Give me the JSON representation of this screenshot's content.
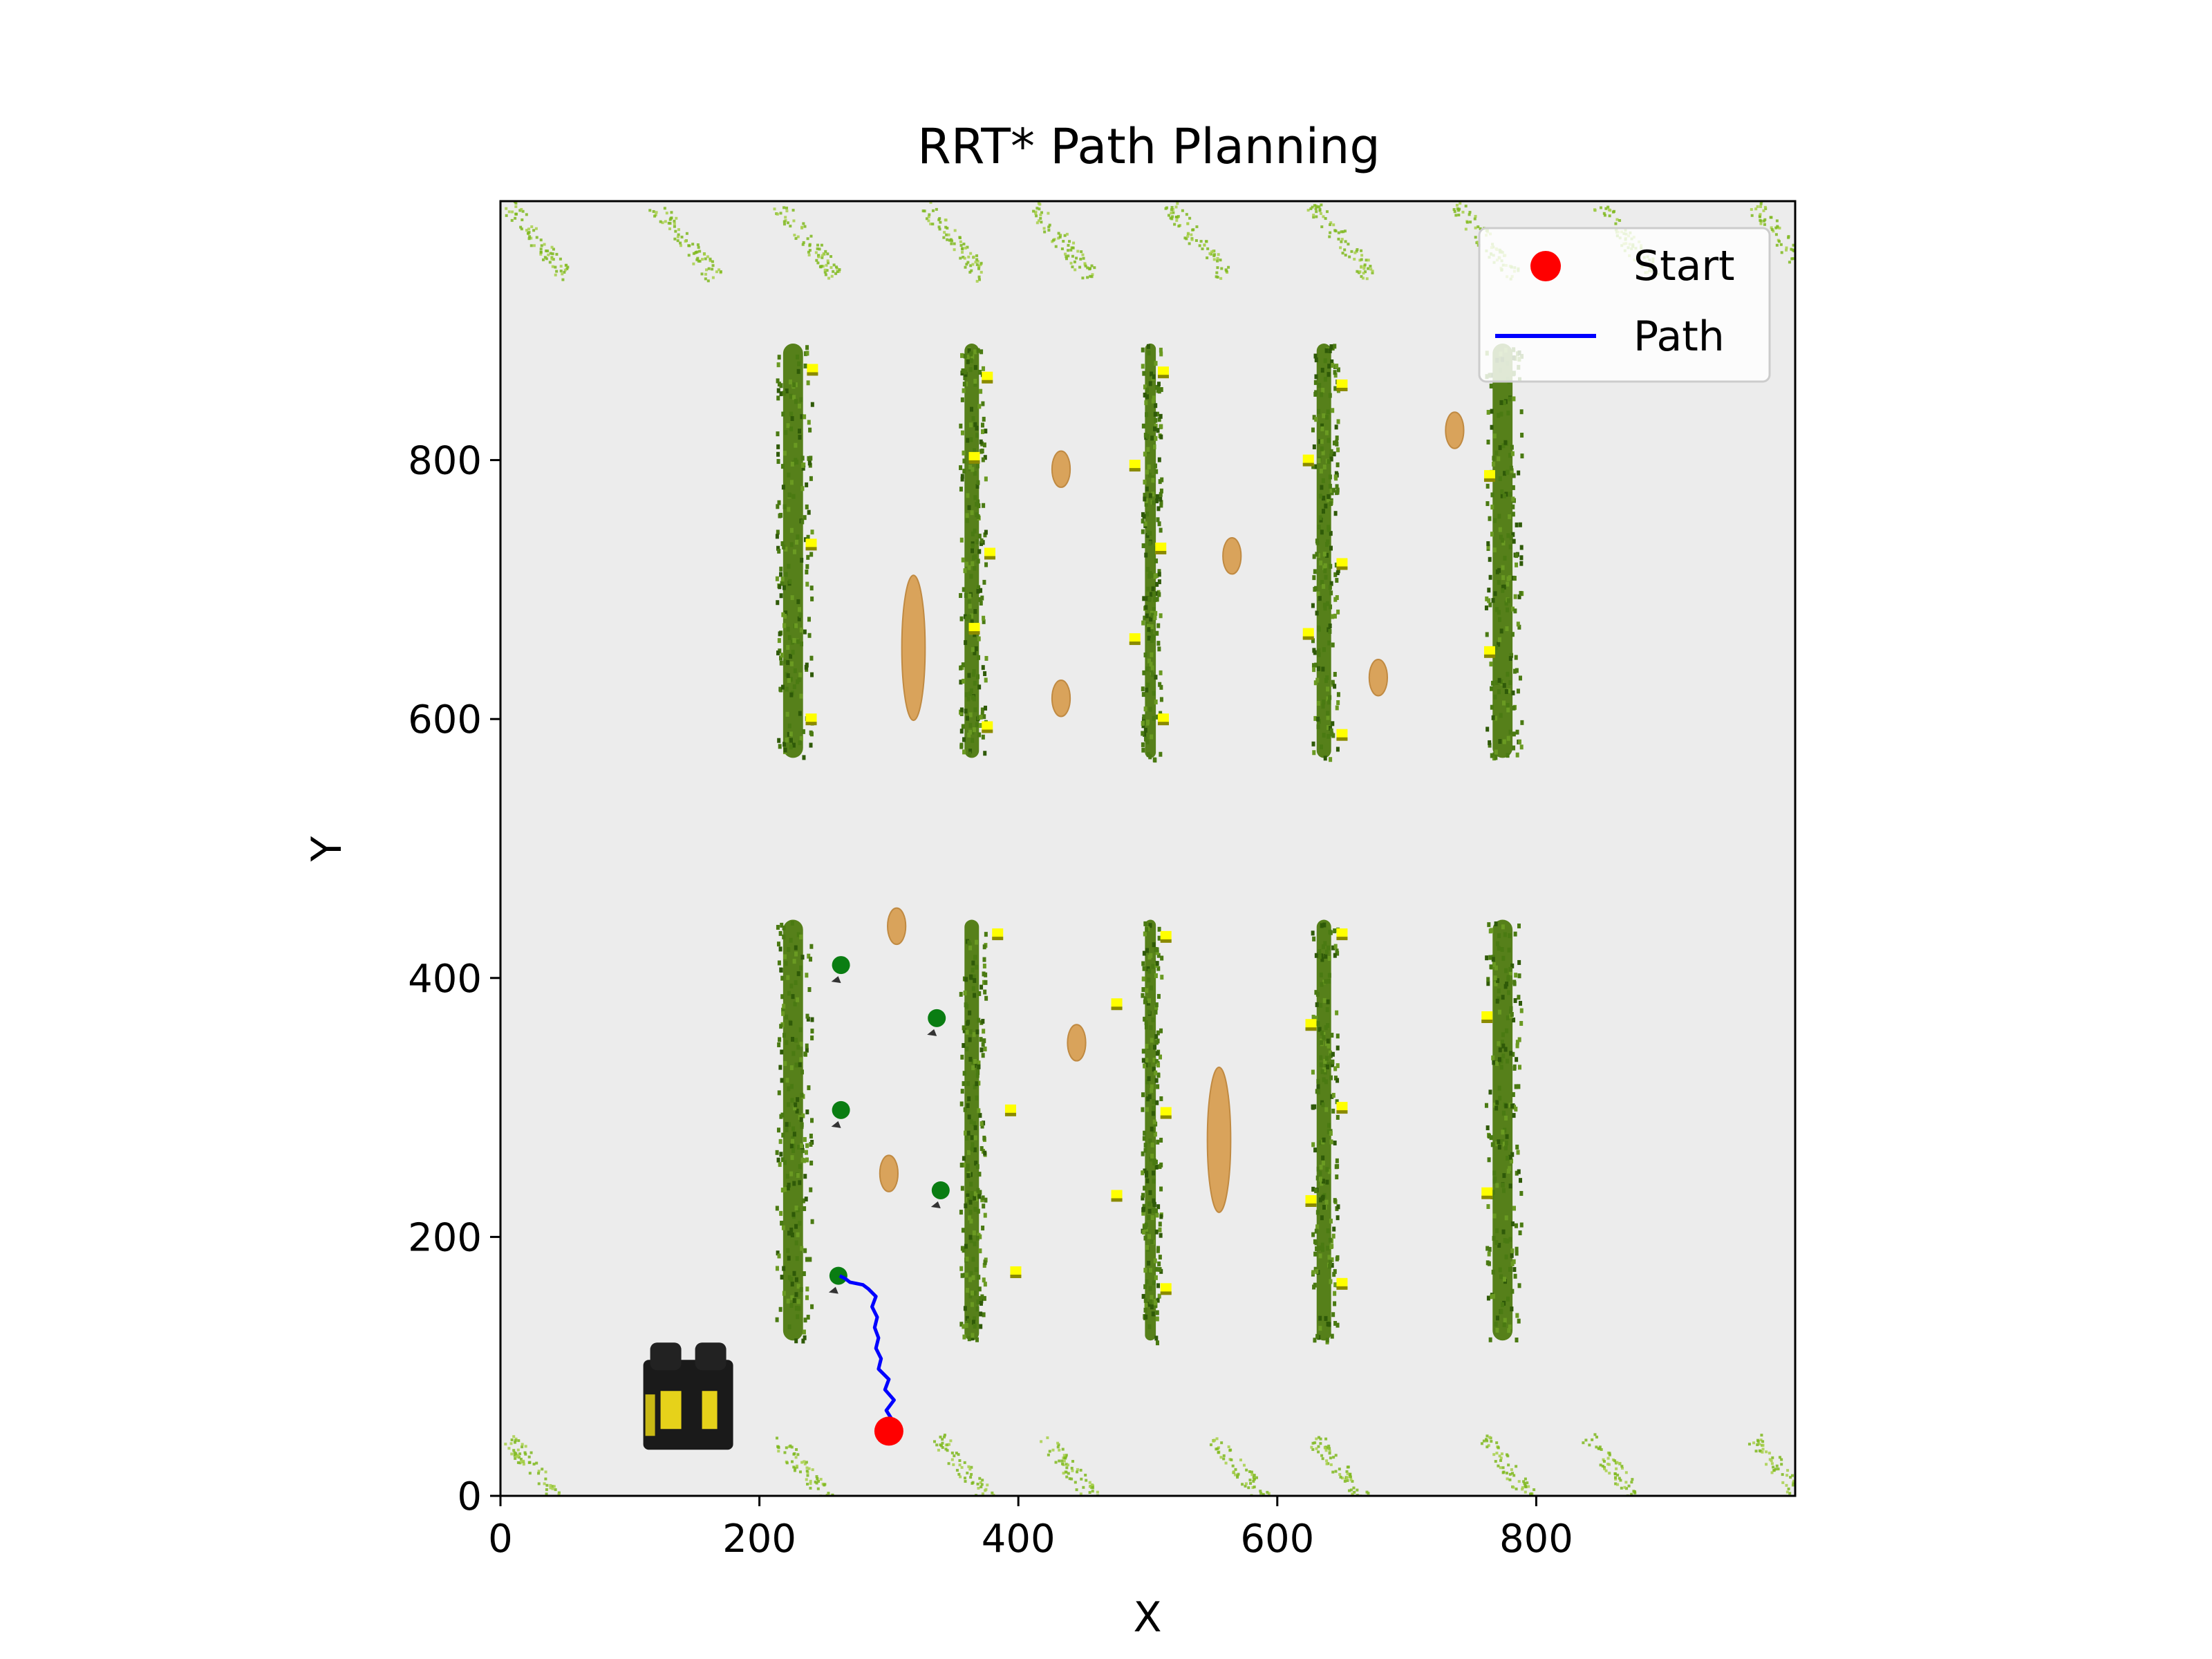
{
  "chart_data": {
    "type": "scatter",
    "title": "RRT* Path Planning",
    "xlabel": "X",
    "ylabel": "Y",
    "xlim": [
      0,
      1000
    ],
    "ylim": [
      0,
      1000
    ],
    "xticks": [
      0,
      200,
      400,
      600,
      800
    ],
    "yticks": [
      0,
      200,
      400,
      600,
      800
    ],
    "grid": false,
    "legend_position": "top-right",
    "background": "#ececec",
    "start": {
      "x": 300,
      "y": 50,
      "color": "#ff0000",
      "label": "Start"
    },
    "path": {
      "label": "Path",
      "color": "#0000ff",
      "points": [
        [
          300,
          50
        ],
        [
          303,
          58
        ],
        [
          298,
          66
        ],
        [
          304,
          74
        ],
        [
          297,
          82
        ],
        [
          300,
          90
        ],
        [
          292,
          98
        ],
        [
          294,
          106
        ],
        [
          290,
          114
        ],
        [
          292,
          122
        ],
        [
          289,
          130
        ],
        [
          291,
          138
        ],
        [
          287,
          146
        ],
        [
          290,
          154
        ],
        [
          284,
          160
        ],
        [
          280,
          163
        ],
        [
          275,
          164
        ],
        [
          270,
          165
        ],
        [
          266,
          168
        ],
        [
          262,
          170
        ]
      ]
    },
    "series": [
      {
        "type": "vegetation-rows",
        "color": "#4a7a12",
        "rows": [
          {
            "x": 226,
            "y0": 570,
            "y1": 890,
            "width": 22
          },
          {
            "x": 364,
            "y0": 570,
            "y1": 890,
            "width": 16
          },
          {
            "x": 502,
            "y0": 570,
            "y1": 890,
            "width": 12
          },
          {
            "x": 636,
            "y0": 570,
            "y1": 890,
            "width": 16
          },
          {
            "x": 774,
            "y0": 570,
            "y1": 890,
            "width": 22
          },
          {
            "x": 226,
            "y0": 120,
            "y1": 445,
            "width": 22
          },
          {
            "x": 364,
            "y0": 120,
            "y1": 445,
            "width": 16
          },
          {
            "x": 502,
            "y0": 120,
            "y1": 445,
            "width": 12
          },
          {
            "x": 636,
            "y0": 120,
            "y1": 445,
            "width": 16
          },
          {
            "x": 774,
            "y0": 120,
            "y1": 445,
            "width": 22
          }
        ]
      },
      {
        "type": "sand-patches",
        "color": "#d9a35b",
        "ellipses": [
          {
            "x": 319,
            "y": 655,
            "rx": 9,
            "ry": 56
          },
          {
            "x": 433,
            "y": 793,
            "rx": 7,
            "ry": 14
          },
          {
            "x": 433,
            "y": 616,
            "rx": 7,
            "ry": 14
          },
          {
            "x": 565,
            "y": 726,
            "rx": 7,
            "ry": 14
          },
          {
            "x": 678,
            "y": 632,
            "rx": 7,
            "ry": 14
          },
          {
            "x": 737,
            "y": 823,
            "rx": 7,
            "ry": 14
          },
          {
            "x": 306,
            "y": 440,
            "rx": 7,
            "ry": 14
          },
          {
            "x": 300,
            "y": 249,
            "rx": 7,
            "ry": 14
          },
          {
            "x": 445,
            "y": 350,
            "rx": 7,
            "ry": 14
          },
          {
            "x": 555,
            "y": 275,
            "rx": 9,
            "ry": 56
          }
        ]
      },
      {
        "type": "markers",
        "color": "#ffff00",
        "points": [
          [
            241,
            870
          ],
          [
            240,
            735
          ],
          [
            240,
            600
          ],
          [
            376,
            864
          ],
          [
            366,
            802
          ],
          [
            378,
            728
          ],
          [
            366,
            670
          ],
          [
            376,
            594
          ],
          [
            512,
            868
          ],
          [
            490,
            796
          ],
          [
            510,
            732
          ],
          [
            490,
            662
          ],
          [
            512,
            600
          ],
          [
            650,
            858
          ],
          [
            624,
            800
          ],
          [
            650,
            720
          ],
          [
            624,
            666
          ],
          [
            650,
            588
          ],
          [
            764,
            788
          ],
          [
            764,
            652
          ],
          [
            384,
            434
          ],
          [
            394,
            298
          ],
          [
            398,
            173
          ],
          [
            476,
            380
          ],
          [
            476,
            232
          ],
          [
            514,
            432
          ],
          [
            514,
            296
          ],
          [
            514,
            160
          ],
          [
            650,
            434
          ],
          [
            626,
            364
          ],
          [
            650,
            300
          ],
          [
            626,
            228
          ],
          [
            650,
            164
          ],
          [
            762,
            370
          ],
          [
            762,
            234
          ]
        ]
      },
      {
        "type": "green-points",
        "color": "#0a7d12",
        "points": [
          [
            263,
            410
          ],
          [
            337,
            369
          ],
          [
            263,
            298
          ],
          [
            340,
            236
          ],
          [
            261,
            170
          ]
        ]
      },
      {
        "type": "fern-decor",
        "color": "#7fb81f",
        "points_top": [
          [
            28,
            970
          ],
          [
            142,
            970
          ],
          [
            237,
            970
          ],
          [
            350,
            970
          ],
          [
            433,
            970
          ],
          [
            538,
            970
          ],
          [
            650,
            970
          ],
          [
            760,
            970
          ],
          [
            870,
            970
          ],
          [
            990,
            970
          ]
        ],
        "points_bottom": [
          [
            28,
            18
          ],
          [
            235,
            18
          ],
          [
            360,
            18
          ],
          [
            442,
            18
          ],
          [
            573,
            18
          ],
          [
            650,
            18
          ],
          [
            780,
            18
          ],
          [
            862,
            18
          ],
          [
            990,
            18
          ]
        ]
      },
      {
        "type": "vehicle",
        "color": "#1a1a1a",
        "x": 145,
        "y": 65
      }
    ]
  }
}
